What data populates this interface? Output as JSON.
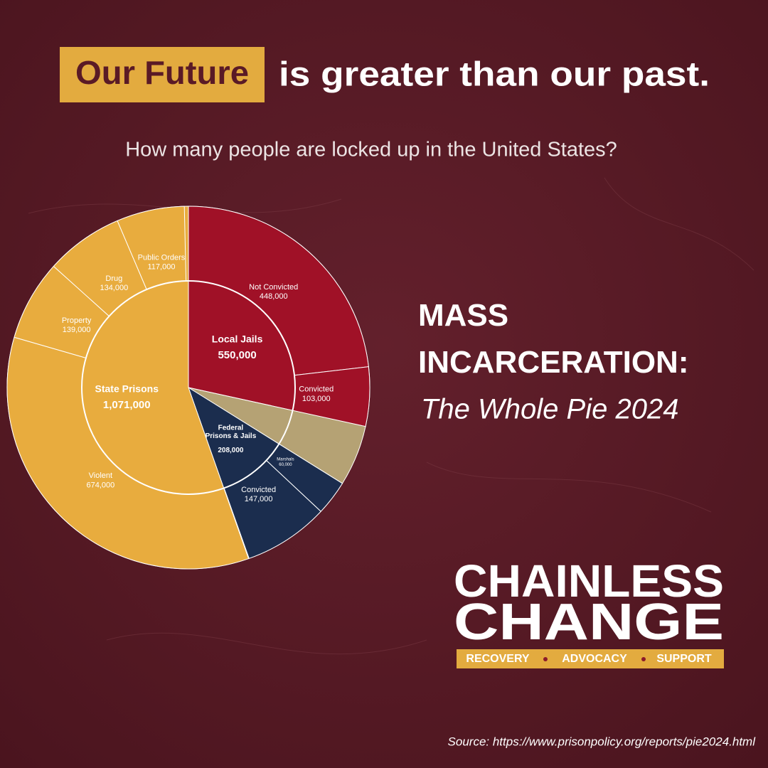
{
  "header": {
    "highlight": "Our Future",
    "title": "is greater than our past."
  },
  "question": "How many people are locked up in the United States?",
  "chart_data": {
    "type": "sunburst",
    "title": "MASS INCARCERATION:",
    "subtitle": "The Whole Pie 2024",
    "categories": [
      "Local Jails",
      null,
      "Federal Prisons & Jails",
      "State Prisons"
    ],
    "values": [
      550000,
      105000,
      208000,
      1071000
    ],
    "value_labels": [
      "550,000",
      null,
      "208,000",
      "1,071,000"
    ],
    "colors": [
      "#a01127",
      "#b5a274",
      "#1b2d4e",
      "#e8ac3e"
    ],
    "children": [
      {
        "categories": [
          "Not Convicted",
          "Convicted"
        ],
        "values": [
          448000,
          103000
        ],
        "value_labels": [
          "448,000",
          "103,000"
        ]
      },
      null,
      {
        "categories": [
          "Marshals",
          "Convicted"
        ],
        "values": [
          60000,
          147000
        ],
        "value_labels": [
          "60,000",
          "147,000"
        ]
      },
      {
        "categories": [
          "Violent",
          "Property",
          "Drug",
          "Public Orders"
        ],
        "values": [
          674000,
          139000,
          134000,
          117000
        ],
        "value_labels": [
          "674,000",
          "139,000",
          "134,000",
          "117,000"
        ]
      }
    ]
  },
  "logo": {
    "line1": "CHAINLESS",
    "line2": "CHANGE",
    "tagline": [
      "RECOVERY",
      "ADVOCACY",
      "SUPPORT"
    ]
  },
  "source": "Source: https://www.prisonpolicy.org/reports/pie2024.html"
}
